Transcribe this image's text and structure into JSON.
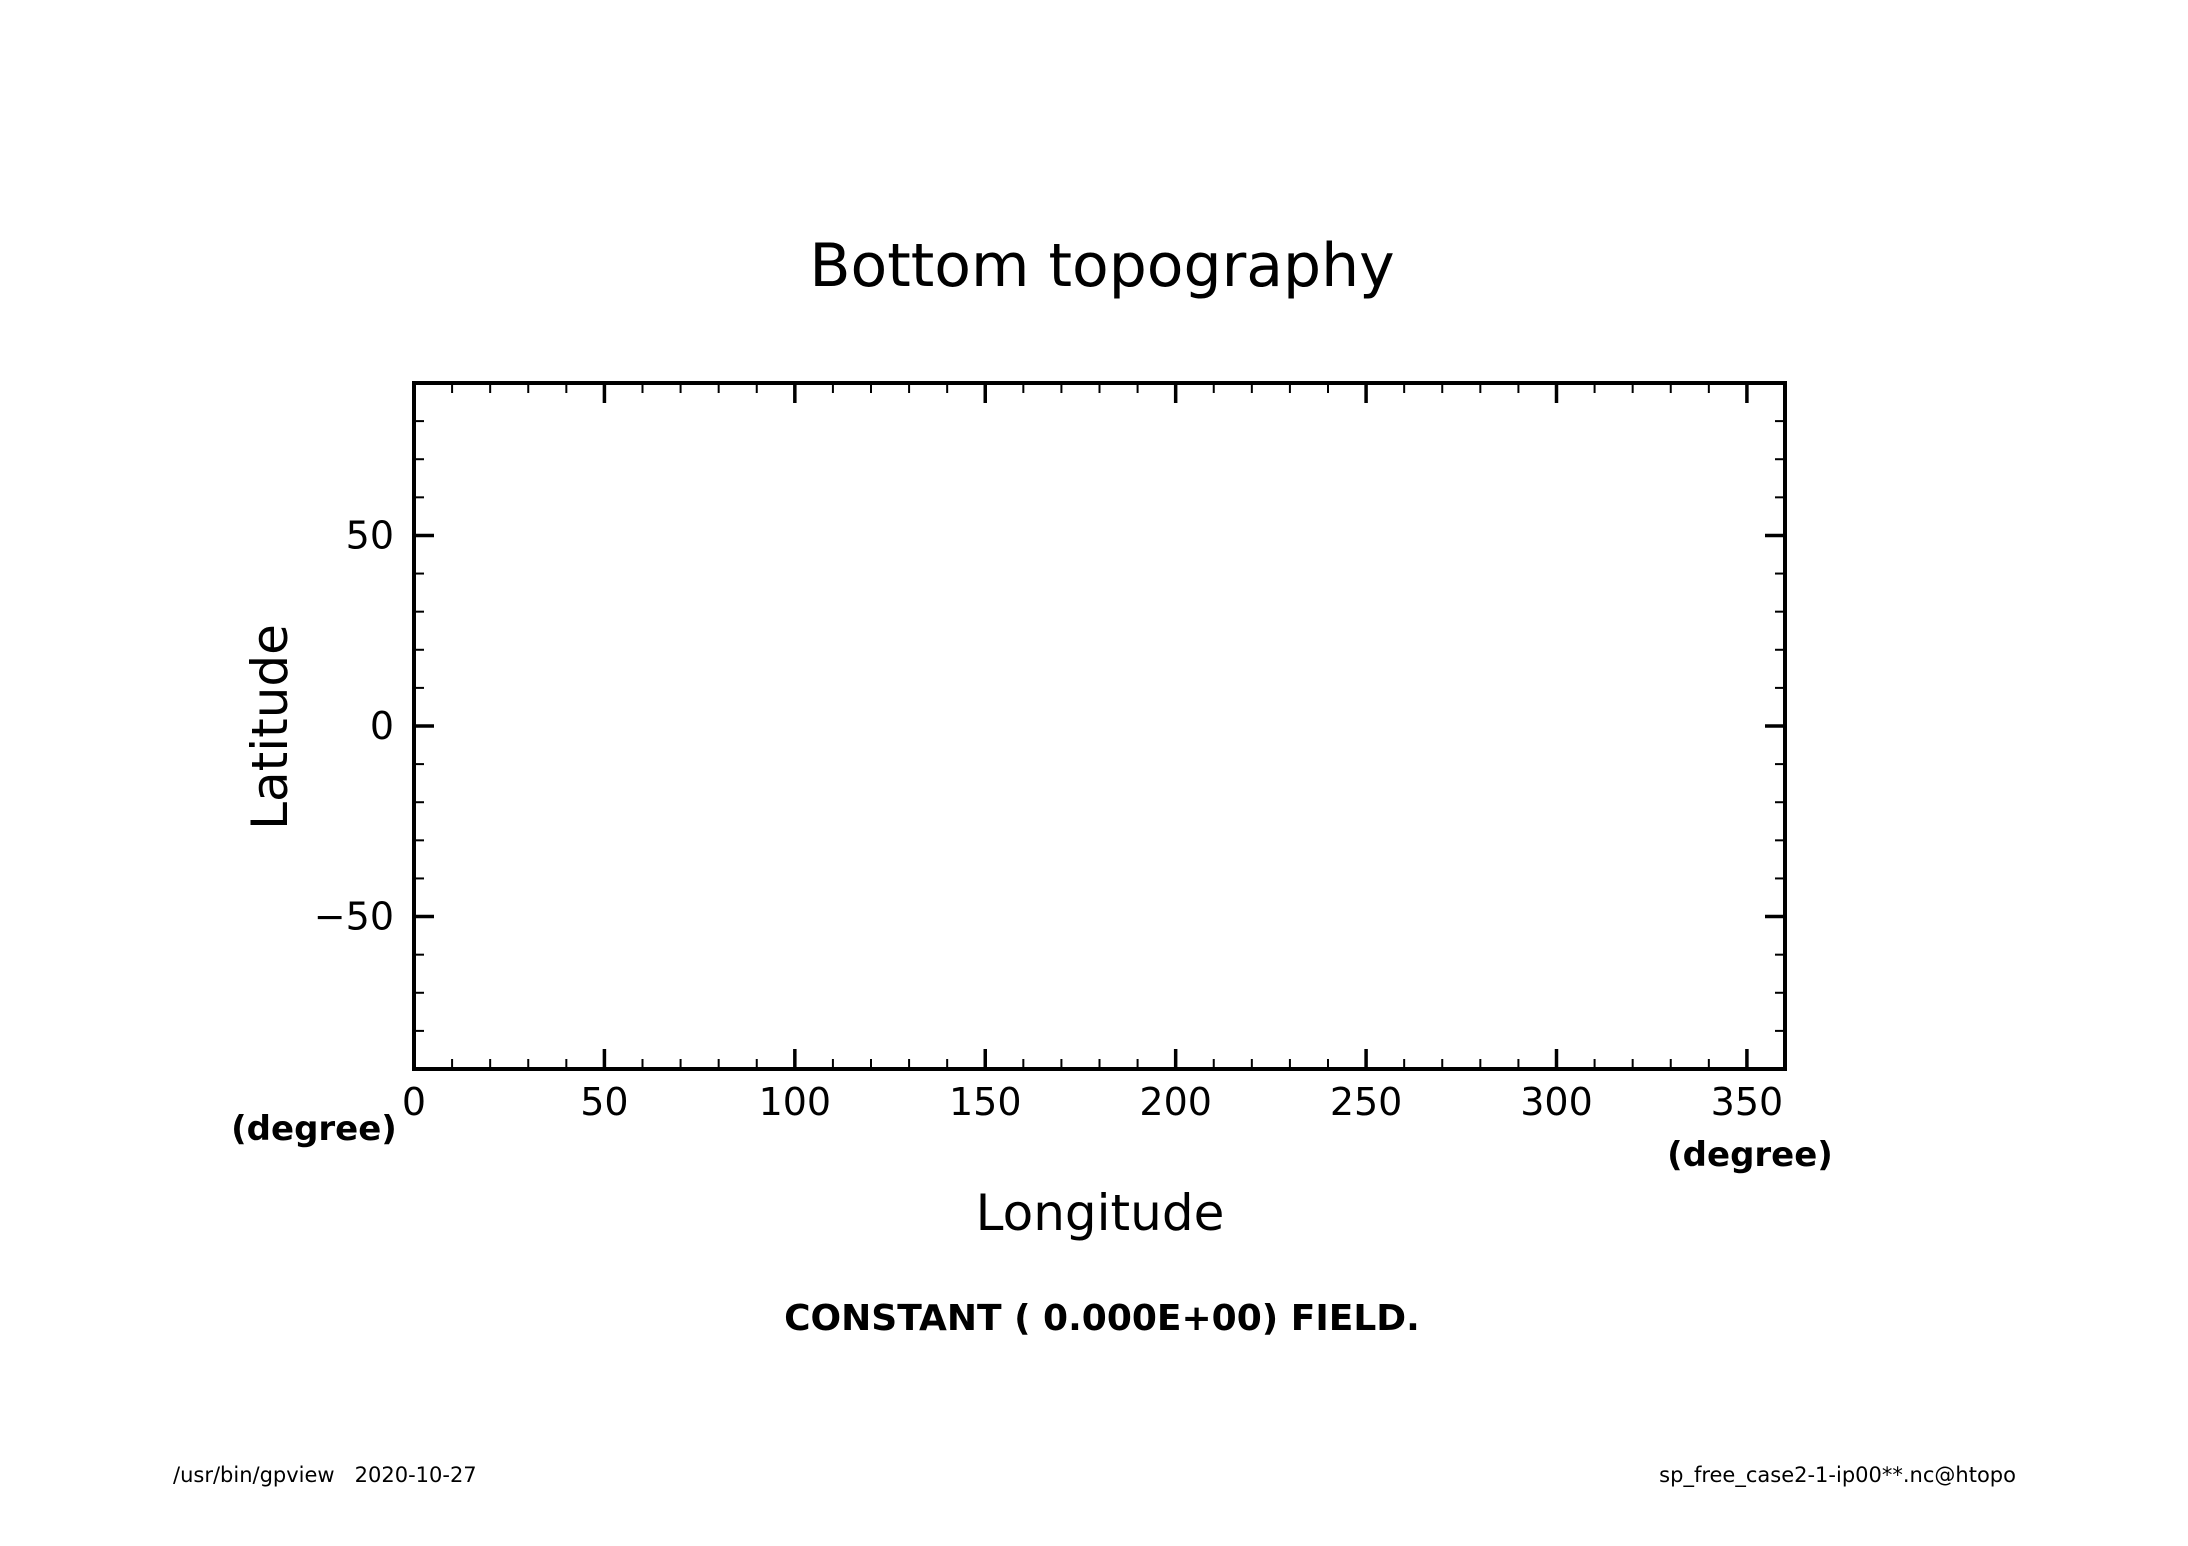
{
  "chart_data": {
    "type": "contour",
    "title": "Bottom topography",
    "xlabel": "Longitude",
    "ylabel": "Latitude",
    "xunit": "(degree)",
    "yunit": "(degree)",
    "xlim": [
      0,
      360
    ],
    "ylim": [
      -90,
      90
    ],
    "xticks": [
      0,
      50,
      100,
      150,
      200,
      250,
      300,
      350
    ],
    "yticks": [
      -50,
      0,
      50
    ],
    "xminor_step": 10,
    "yminor_step": 10,
    "grid": false,
    "message": "CONSTANT ( 0.000E+00) FIELD.",
    "series": []
  },
  "footer": {
    "left": "/usr/bin/gpview   2020-10-27",
    "right": "sp_free_case2-1-ip00**.nc@htopo"
  }
}
